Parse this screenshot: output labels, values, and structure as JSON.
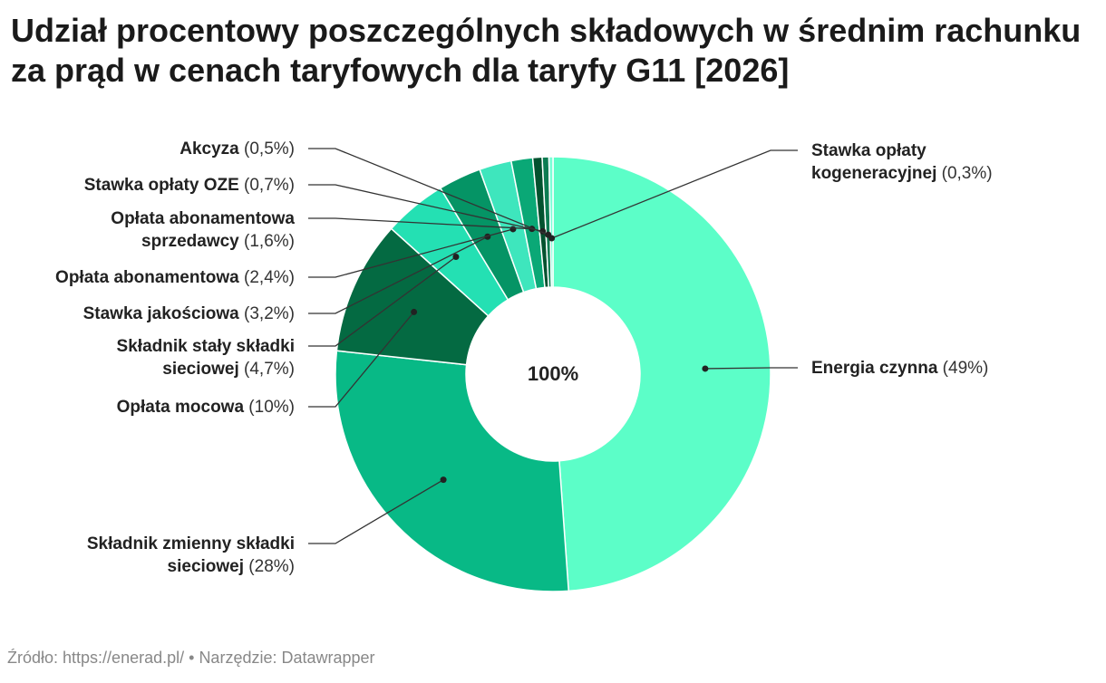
{
  "title": "Udział procentowy poszczególnych składowych w średnim rachunku za prąd w cenach taryfowych dla taryfy G11 [2026]",
  "footer": {
    "source_label": "Źródło: ",
    "source_url": "https://enerad.pl/",
    "separator": " • ",
    "tool_label": "Narzędzie: ",
    "tool_name": "Datawrapper"
  },
  "chart_data": {
    "type": "pie",
    "variant": "donut",
    "center_label": "100%",
    "slices": [
      {
        "name": "Energia czynna",
        "value_label": "(49%)",
        "value": 49.1,
        "color": "#5cfec8",
        "label_lines": [
          "Energia czynna"
        ],
        "label_side": "right"
      },
      {
        "name": "Składnik zmienny składki sieciowej",
        "value_label": "(28%)",
        "value": 28.0,
        "color": "#08b986",
        "label_lines": [
          "Składnik zmienny składki",
          "sieciowej"
        ],
        "label_side": "left"
      },
      {
        "name": "Opłata mocowa",
        "value_label": "(10%)",
        "value": 10.0,
        "color": "#046a42",
        "label_lines": [
          "Opłata mocowa"
        ],
        "label_side": "left"
      },
      {
        "name": "Składnik stały składki sieciowej",
        "value_label": "(4,7%)",
        "value": 4.7,
        "color": "#24e0b3",
        "label_lines": [
          "Składnik stały składki",
          "sieciowej"
        ],
        "label_side": "left"
      },
      {
        "name": "Stawka jakościowa",
        "value_label": "(3,2%)",
        "value": 3.2,
        "color": "#059465",
        "label_lines": [
          "Stawka jakościowa"
        ],
        "label_side": "left"
      },
      {
        "name": "Opłata abonamentowa",
        "value_label": "(2,4%)",
        "value": 2.4,
        "color": "#3ee6bd",
        "label_lines": [
          "Opłata abonamentowa"
        ],
        "label_side": "left"
      },
      {
        "name": "Opłata abonamentowa sprzedawcy",
        "value_label": "(1,6%)",
        "value": 1.6,
        "color": "#0aa876",
        "label_lines": [
          "Opłata abonamentowa",
          "sprzedawcy"
        ],
        "label_side": "left"
      },
      {
        "name": "Stawka opłaty OZE",
        "value_label": "(0,7%)",
        "value": 0.7,
        "color": "#03522f",
        "label_lines": [
          "Stawka opłaty OZE"
        ],
        "label_side": "left"
      },
      {
        "name": "Akcyza",
        "value_label": "(0,5%)",
        "value": 0.5,
        "color": "#0c7c52",
        "label_lines": [
          "Akcyza"
        ],
        "label_side": "left"
      },
      {
        "name": "Stawka opłaty kogeneracyjnej",
        "value_label": "(0,3%)",
        "value": 0.3,
        "color": "#7affd6",
        "label_lines": [
          "Stawka opłaty",
          "kogeneracyjnej"
        ],
        "label_side": "right"
      }
    ]
  }
}
